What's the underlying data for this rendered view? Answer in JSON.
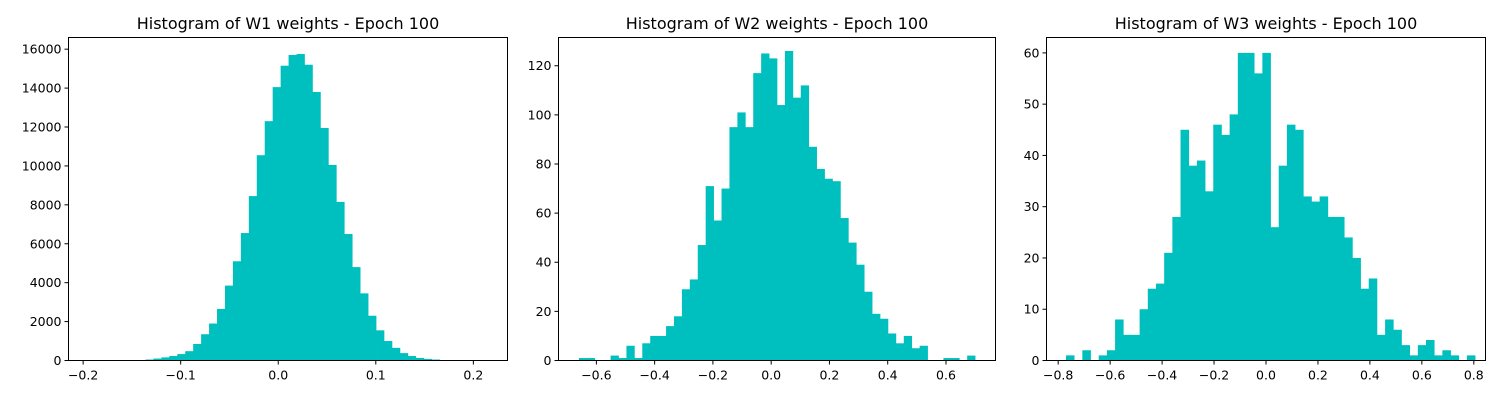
{
  "chart_data": [
    {
      "type": "bar",
      "title": "Histogram of W1 weights - Epoch 100",
      "xlabel": "",
      "ylabel": "",
      "xlim": [
        -0.215,
        0.235
      ],
      "ylim": [
        0,
        16600
      ],
      "xticks": [
        -0.2,
        -0.1,
        0.0,
        0.1,
        0.2
      ],
      "yticks": [
        0,
        2000,
        4000,
        6000,
        8000,
        10000,
        12000,
        14000,
        16000
      ],
      "ytick_labels": [
        "0",
        "2000",
        "4000",
        "6000",
        "8000",
        "10000",
        "12000",
        "14000",
        "16000"
      ],
      "xtick_labels": [
        "−0.2",
        "−0.1",
        "0.0",
        "0.1",
        "0.2"
      ],
      "bin_start": -0.185,
      "bin_width": 0.00815,
      "values": [
        0,
        0,
        5,
        8,
        15,
        25,
        50,
        100,
        160,
        230,
        330,
        480,
        850,
        1350,
        1900,
        2650,
        3850,
        5100,
        6550,
        8450,
        10550,
        12300,
        14050,
        15150,
        15700,
        15750,
        15200,
        13800,
        11950,
        10050,
        8150,
        6500,
        4800,
        3450,
        2300,
        1550,
        1000,
        650,
        380,
        230,
        130,
        80,
        50,
        25,
        12,
        6,
        3,
        1,
        0,
        1
      ],
      "color": "#00bfbf",
      "grid": false
    },
    {
      "type": "bar",
      "title": "Histogram of W2 weights - Epoch 100",
      "xlabel": "",
      "ylabel": "",
      "xlim": [
        -0.73,
        0.77
      ],
      "ylim": [
        0,
        131.5
      ],
      "xticks": [
        -0.6,
        -0.4,
        -0.2,
        0.0,
        0.2,
        0.4,
        0.6
      ],
      "yticks": [
        0,
        20,
        40,
        60,
        80,
        100,
        120
      ],
      "ytick_labels": [
        "0",
        "20",
        "40",
        "60",
        "80",
        "100",
        "120"
      ],
      "xtick_labels": [
        "−0.6",
        "−0.4",
        "−0.2",
        "0.0",
        "0.2",
        "0.4",
        "0.6"
      ],
      "bin_start": -0.66,
      "bin_width": 0.0272,
      "values": [
        1,
        1,
        0,
        0,
        2,
        1,
        6,
        1,
        7,
        10,
        10,
        14,
        18,
        29,
        33,
        47,
        71,
        57,
        70,
        95,
        101,
        95,
        117,
        125,
        123,
        104,
        126,
        107,
        112,
        87,
        78,
        74,
        73,
        58,
        48,
        39,
        28,
        19,
        17,
        11,
        7,
        10,
        5,
        6,
        0,
        0,
        1,
        1,
        0,
        2
      ],
      "color": "#00bfbf",
      "grid": false
    },
    {
      "type": "bar",
      "title": "Histogram of W3 weights - Epoch 100",
      "xlabel": "",
      "ylabel": "",
      "xlim": [
        -0.845,
        0.845
      ],
      "ylim": [
        0,
        63
      ],
      "xticks": [
        -0.8,
        -0.6,
        -0.4,
        -0.2,
        0.0,
        0.2,
        0.4,
        0.6,
        0.8
      ],
      "yticks": [
        0,
        10,
        20,
        30,
        40,
        50,
        60
      ],
      "ytick_labels": [
        "0",
        "10",
        "20",
        "30",
        "40",
        "50",
        "60"
      ],
      "xtick_labels": [
        "−0.8",
        "−0.6",
        "−0.4",
        "−0.2",
        "0.0",
        "0.2",
        "0.4",
        "0.6",
        "0.8"
      ],
      "bin_start": -0.77,
      "bin_width": 0.0315,
      "values": [
        1,
        0,
        2,
        0,
        1,
        2,
        8,
        5,
        5,
        10,
        14,
        15,
        21,
        28,
        45,
        38,
        39,
        33,
        46,
        44,
        48,
        60,
        60,
        56,
        60,
        26,
        38,
        46,
        45,
        32,
        31,
        32,
        28,
        28,
        24,
        20,
        14,
        16,
        5,
        8,
        6,
        3,
        1,
        3,
        4,
        1,
        2,
        1,
        0,
        1
      ],
      "color": "#00bfbf",
      "grid": false
    }
  ]
}
